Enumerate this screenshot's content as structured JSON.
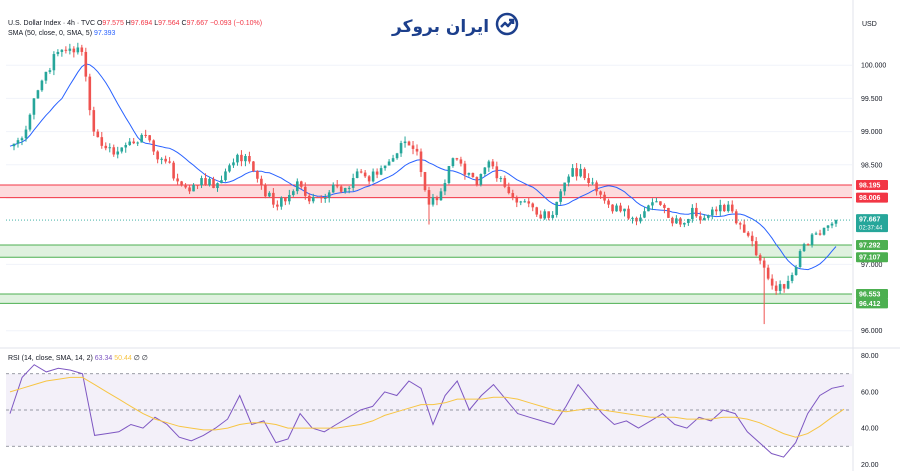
{
  "header": {
    "symbol": "U.S. Dollar Index · 4h · TVC",
    "o_label": "O",
    "o_value": "97.575",
    "h_label": "H",
    "h_value": "97.694",
    "l_label": "L",
    "l_value": "97.564",
    "c_label": "C",
    "c_value": "97.667",
    "change": "−0.093 (−0.10%)",
    "sma_label": "SMA (50, close, 0, SMA, 5)",
    "sma_value": "97.393"
  },
  "logo_text": "ایران بروکر",
  "currency": "USD",
  "rsi_header": {
    "label": "RSI (14, close, SMA, 14, 2)",
    "rsi_value": "63.34",
    "ma_value": "50.44",
    "extra": "∅ ∅"
  },
  "colors": {
    "up": "#26a69a",
    "down": "#ef5350",
    "sma": "#2962ff",
    "rsi": "#7e57c2",
    "rsi_ma": "#f7c544",
    "resistance": "#f23645",
    "support": "#4caf50"
  },
  "chart_data": [
    {
      "type": "candlestick",
      "title": "U.S. Dollar Index · 4h · TVC",
      "ylim": [
        95.8,
        100.35
      ],
      "y_ticks": [
        "100.000",
        "99.500",
        "99.000",
        "98.500",
        "98.000",
        "97.000",
        "96.000"
      ],
      "y_tick_values": [
        100.0,
        99.5,
        99.0,
        98.5,
        98.0,
        97.0,
        96.0
      ],
      "zones": [
        {
          "top": 98.195,
          "bottom": 98.006,
          "top_label": "98.195",
          "bottom_label": "98.006",
          "kind": "resistance"
        },
        {
          "top": 97.292,
          "bottom": 97.107,
          "top_label": "97.292",
          "bottom_label": "97.107",
          "kind": "support"
        },
        {
          "top": 96.553,
          "bottom": 96.412,
          "top_label": "96.553",
          "bottom_label": "96.412",
          "kind": "support"
        }
      ],
      "last_price": 97.667,
      "last_price_label": "97.667",
      "countdown": "02:37:44",
      "sma_last": 97.393,
      "anchors": [
        [
          0,
          98.78
        ],
        [
          1,
          98.9
        ],
        [
          2,
          99.5
        ],
        [
          3,
          99.9
        ],
        [
          4,
          100.2
        ],
        [
          5,
          100.25
        ],
        [
          6,
          100.2
        ],
        [
          7,
          99.0
        ],
        [
          8,
          98.75
        ],
        [
          9,
          98.7
        ],
        [
          10,
          98.85
        ],
        [
          11,
          98.95
        ],
        [
          12,
          98.7
        ],
        [
          13,
          98.55
        ],
        [
          14,
          98.25
        ],
        [
          15,
          98.1
        ],
        [
          16,
          98.3
        ],
        [
          17,
          98.15
        ],
        [
          18,
          98.4
        ],
        [
          19,
          98.65
        ],
        [
          20,
          98.55
        ],
        [
          21,
          98.2
        ],
        [
          22,
          97.9
        ],
        [
          23,
          97.95
        ],
        [
          24,
          98.25
        ],
        [
          25,
          97.95
        ],
        [
          26,
          98.0
        ],
        [
          27,
          98.2
        ],
        [
          28,
          98.15
        ],
        [
          29,
          98.4
        ],
        [
          30,
          98.25
        ],
        [
          31,
          98.45
        ],
        [
          32,
          98.6
        ],
        [
          33,
          98.85
        ],
        [
          34,
          98.7
        ],
        [
          35,
          97.9
        ],
        [
          36,
          98.1
        ],
        [
          37,
          98.6
        ],
        [
          38,
          98.35
        ],
        [
          39,
          98.2
        ],
        [
          40,
          98.55
        ],
        [
          41,
          98.3
        ],
        [
          42,
          98.0
        ],
        [
          43,
          97.95
        ],
        [
          44,
          97.75
        ],
        [
          45,
          97.7
        ],
        [
          46,
          98.1
        ],
        [
          47,
          98.45
        ],
        [
          48,
          98.3
        ],
        [
          49,
          98.1
        ],
        [
          50,
          97.9
        ],
        [
          51,
          97.8
        ],
        [
          52,
          97.7
        ],
        [
          53,
          97.8
        ],
        [
          54,
          97.95
        ],
        [
          55,
          97.7
        ],
        [
          56,
          97.6
        ],
        [
          57,
          97.85
        ],
        [
          58,
          97.7
        ],
        [
          59,
          97.8
        ],
        [
          60,
          97.9
        ],
        [
          61,
          97.6
        ],
        [
          62,
          97.35
        ],
        [
          63,
          96.95
        ],
        [
          64,
          96.6
        ],
        [
          65,
          96.75
        ],
        [
          66,
          97.2
        ],
        [
          67,
          97.45
        ],
        [
          68,
          97.55
        ],
        [
          69,
          97.667
        ]
      ],
      "wicks": [
        [
          35,
          97.6
        ],
        [
          63,
          96.1
        ]
      ]
    },
    {
      "type": "line",
      "title": "RSI (14, close, SMA, 14, 2)",
      "ylim": [
        18,
        82
      ],
      "y_ticks": [
        "80.00",
        "60.00",
        "40.00",
        "20.00"
      ],
      "y_tick_values": [
        80,
        60,
        40,
        20
      ],
      "bands": [
        70,
        50,
        30
      ],
      "series": [
        {
          "name": "RSI",
          "values": [
            48,
            68,
            75,
            71,
            73,
            72,
            70,
            36,
            37,
            38,
            42,
            40,
            46,
            42,
            35,
            33,
            36,
            40,
            45,
            58,
            42,
            44,
            32,
            34,
            48,
            40,
            38,
            42,
            46,
            50,
            52,
            60,
            58,
            66,
            62,
            42,
            58,
            66,
            50,
            58,
            64,
            56,
            48,
            46,
            44,
            42,
            52,
            64,
            56,
            48,
            42,
            44,
            40,
            44,
            48,
            42,
            40,
            46,
            44,
            50,
            48,
            38,
            32,
            26,
            24,
            32,
            48,
            58,
            62,
            63.34
          ]
        },
        {
          "name": "RSI MA",
          "values": [
            60,
            62,
            64,
            66,
            67,
            68,
            68,
            64,
            60,
            56,
            52,
            48,
            45,
            43,
            41,
            40,
            39,
            39,
            40,
            42,
            43,
            43,
            42,
            40,
            40,
            40,
            40,
            40,
            41,
            42,
            44,
            47,
            49,
            51,
            53,
            53,
            54,
            56,
            56,
            56,
            57,
            57,
            56,
            54,
            52,
            50,
            49,
            50,
            51,
            50,
            49,
            48,
            47,
            46,
            46,
            46,
            45,
            45,
            45,
            46,
            46,
            45,
            43,
            40,
            37,
            35,
            37,
            41,
            46,
            50.44
          ]
        }
      ]
    }
  ]
}
